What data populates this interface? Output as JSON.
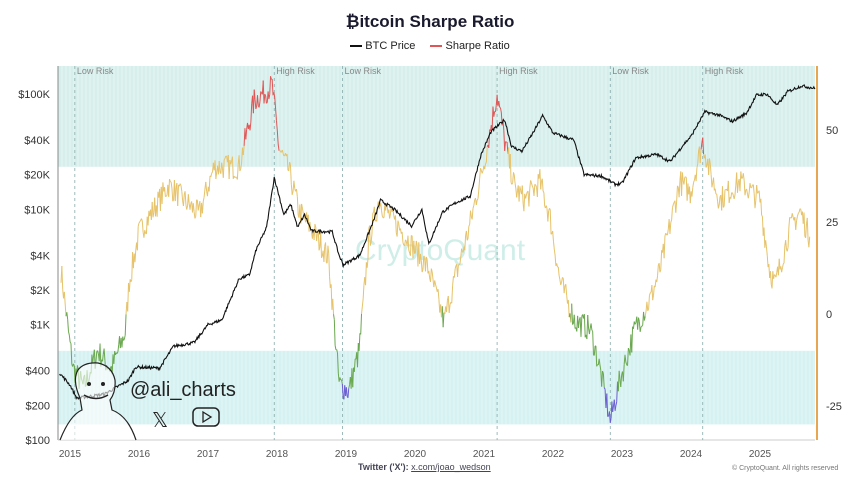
{
  "chart_data": {
    "type": "line",
    "title": "₿itcoin Sharpe Ratio",
    "legend": {
      "placement": "top-center",
      "entries": [
        {
          "name": "BTC Price",
          "color": "#111111"
        },
        {
          "name": "Sharpe Ratio",
          "color": "#e05555"
        }
      ]
    },
    "x_ticks": [
      "2015",
      "2016",
      "2017",
      "2018",
      "2019",
      "2020",
      "2021",
      "2022",
      "2023",
      "2024",
      "2025"
    ],
    "x_range": [
      2014.85,
      2025.85
    ],
    "left_axis": {
      "scale": "log",
      "ticks": [
        {
          "v": 100,
          "label": "$100"
        },
        {
          "v": 200,
          "label": "$200"
        },
        {
          "v": 400,
          "label": "$400"
        },
        {
          "v": 1000,
          "label": "$1K"
        },
        {
          "v": 2000,
          "label": "$2K"
        },
        {
          "v": 4000,
          "label": "$4K"
        },
        {
          "v": 10000,
          "label": "$10K"
        },
        {
          "v": 20000,
          "label": "$20K"
        },
        {
          "v": 40000,
          "label": "$40K"
        },
        {
          "v": 100000,
          "label": "$100K"
        }
      ],
      "range": [
        100,
        200000
      ]
    },
    "right_axis": {
      "scale": "linear",
      "ticks": [
        -25,
        0,
        25,
        50
      ],
      "range": [
        -34,
        68
      ]
    },
    "bands": [
      {
        "from": 40,
        "to": 68,
        "color": "#d7efec"
      },
      {
        "from": -30,
        "to": -10,
        "color": "#d6f1f1"
      }
    ],
    "risk_markers": [
      {
        "x": 2015.07,
        "label": "Low Risk"
      },
      {
        "x": 2017.96,
        "label": "High Risk"
      },
      {
        "x": 2018.95,
        "label": "Low Risk"
      },
      {
        "x": 2021.19,
        "label": "High Risk"
      },
      {
        "x": 2022.83,
        "label": "Low Risk"
      },
      {
        "x": 2024.17,
        "label": "High Risk"
      }
    ],
    "series": [
      {
        "name": "BTC Price",
        "axis": "left",
        "color": "#111111",
        "points": [
          [
            2014.85,
            380
          ],
          [
            2015.0,
            300
          ],
          [
            2015.1,
            230
          ],
          [
            2015.5,
            250
          ],
          [
            2015.85,
            330
          ],
          [
            2015.95,
            430
          ],
          [
            2016.3,
            420
          ],
          [
            2016.5,
            650
          ],
          [
            2016.8,
            700
          ],
          [
            2017.0,
            1000
          ],
          [
            2017.2,
            1100
          ],
          [
            2017.45,
            2500
          ],
          [
            2017.6,
            2700
          ],
          [
            2017.7,
            4500
          ],
          [
            2017.85,
            7000
          ],
          [
            2017.96,
            19000
          ],
          [
            2018.1,
            9000
          ],
          [
            2018.2,
            11000
          ],
          [
            2018.3,
            7000
          ],
          [
            2018.4,
            9000
          ],
          [
            2018.5,
            6500
          ],
          [
            2018.8,
            6400
          ],
          [
            2018.9,
            4000
          ],
          [
            2018.96,
            3300
          ],
          [
            2019.2,
            4000
          ],
          [
            2019.4,
            8000
          ],
          [
            2019.5,
            12000
          ],
          [
            2019.7,
            10000
          ],
          [
            2019.95,
            7200
          ],
          [
            2020.1,
            10000
          ],
          [
            2020.2,
            5000
          ],
          [
            2020.4,
            9500
          ],
          [
            2020.6,
            11500
          ],
          [
            2020.8,
            13000
          ],
          [
            2020.95,
            29000
          ],
          [
            2021.1,
            47000
          ],
          [
            2021.3,
            60000
          ],
          [
            2021.4,
            35000
          ],
          [
            2021.55,
            32000
          ],
          [
            2021.7,
            45000
          ],
          [
            2021.85,
            65000
          ],
          [
            2022.0,
            46000
          ],
          [
            2022.3,
            40000
          ],
          [
            2022.45,
            20000
          ],
          [
            2022.7,
            19500
          ],
          [
            2022.9,
            16500
          ],
          [
            2023.0,
            16800
          ],
          [
            2023.2,
            28000
          ],
          [
            2023.5,
            30000
          ],
          [
            2023.7,
            26000
          ],
          [
            2023.9,
            37000
          ],
          [
            2024.0,
            43000
          ],
          [
            2024.2,
            70000
          ],
          [
            2024.4,
            66000
          ],
          [
            2024.6,
            58000
          ],
          [
            2024.8,
            68000
          ],
          [
            2024.95,
            98000
          ],
          [
            2025.1,
            100000
          ],
          [
            2025.25,
            80000
          ],
          [
            2025.4,
            105000
          ],
          [
            2025.6,
            118000
          ],
          [
            2025.8,
            112000
          ]
        ]
      },
      {
        "name": "Sharpe Ratio",
        "axis": "right",
        "color": "#e05555",
        "color_zones": [
          {
            "min": 45,
            "color": "#e05555"
          },
          {
            "min": 0,
            "color": "#e6c36a"
          },
          {
            "min": -20,
            "color": "#6aa84f"
          },
          {
            "min": -99,
            "color": "#6a5fd0"
          }
        ],
        "points": [
          [
            2014.87,
            12
          ],
          [
            2014.99,
            -7
          ],
          [
            2015.05,
            -15
          ],
          [
            2015.2,
            -20
          ],
          [
            2015.4,
            -10
          ],
          [
            2015.6,
            -15
          ],
          [
            2015.8,
            -5
          ],
          [
            2015.86,
            9
          ],
          [
            2016.0,
            22
          ],
          [
            2016.43,
            35
          ],
          [
            2016.87,
            27
          ],
          [
            2017.09,
            40
          ],
          [
            2017.45,
            40
          ],
          [
            2017.67,
            58
          ],
          [
            2017.93,
            62
          ],
          [
            2018.03,
            45
          ],
          [
            2018.17,
            39
          ],
          [
            2018.32,
            28
          ],
          [
            2018.61,
            20
          ],
          [
            2018.75,
            15
          ],
          [
            2018.9,
            -19
          ],
          [
            2019.04,
            -21
          ],
          [
            2019.19,
            -10
          ],
          [
            2019.33,
            20
          ],
          [
            2019.48,
            31
          ],
          [
            2019.62,
            27
          ],
          [
            2019.91,
            20
          ],
          [
            2020.2,
            12
          ],
          [
            2020.42,
            -2
          ],
          [
            2020.57,
            9
          ],
          [
            2020.78,
            23
          ],
          [
            2021.01,
            42
          ],
          [
            2021.19,
            60
          ],
          [
            2021.3,
            47
          ],
          [
            2021.45,
            34
          ],
          [
            2021.59,
            31
          ],
          [
            2021.81,
            36
          ],
          [
            2021.96,
            26
          ],
          [
            2022.1,
            9
          ],
          [
            2022.32,
            -2
          ],
          [
            2022.54,
            -4
          ],
          [
            2022.68,
            -15
          ],
          [
            2022.83,
            -29
          ],
          [
            2022.97,
            -18
          ],
          [
            2023.19,
            -4
          ],
          [
            2023.41,
            4
          ],
          [
            2023.55,
            12
          ],
          [
            2023.84,
            36
          ],
          [
            2023.99,
            33
          ],
          [
            2024.17,
            47
          ],
          [
            2024.28,
            38
          ],
          [
            2024.42,
            31
          ],
          [
            2024.71,
            36
          ],
          [
            2025.0,
            31
          ],
          [
            2025.14,
            12
          ],
          [
            2025.22,
            8
          ],
          [
            2025.43,
            23
          ],
          [
            2025.58,
            28
          ],
          [
            2025.72,
            21
          ]
        ]
      }
    ]
  },
  "watermark": "CryptoQuant",
  "author_logo": {
    "handle": "@ali_charts"
  },
  "footer": {
    "label": "Twitter ('X'):",
    "link": "https://x.com/joao_wedson",
    "copyright": "© CryptoQuant. All rights reserved"
  }
}
